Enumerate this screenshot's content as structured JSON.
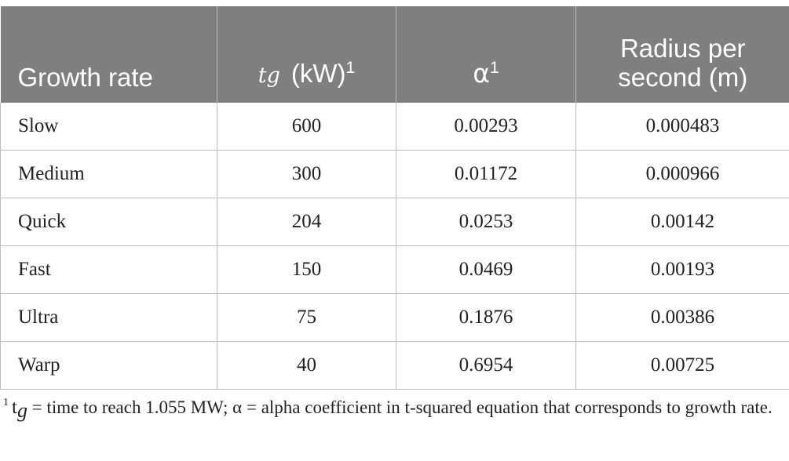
{
  "table": {
    "headers": {
      "growth_rate": "Growth rate",
      "tg_symbol": "tg",
      "tg_unit": "(kW)",
      "tg_note": "1",
      "alpha_symbol": "α",
      "alpha_note": "1",
      "radius_line1": "Radius per",
      "radius_line2": "second (m)"
    },
    "rows": [
      {
        "growth_rate": "Slow",
        "tg_kw": "600",
        "alpha": "0.00293",
        "radius": "0.000483"
      },
      {
        "growth_rate": "Medium",
        "tg_kw": "300",
        "alpha": "0.01172",
        "radius": "0.000966"
      },
      {
        "growth_rate": "Quick",
        "tg_kw": "204",
        "alpha": "0.0253",
        "radius": "0.00142"
      },
      {
        "growth_rate": "Fast",
        "tg_kw": "150",
        "alpha": "0.0469",
        "radius": "0.00193"
      },
      {
        "growth_rate": "Ultra",
        "tg_kw": "75",
        "alpha": "0.1876",
        "radius": "0.00386"
      },
      {
        "growth_rate": "Warp",
        "tg_kw": "40",
        "alpha": "0.6954",
        "radius": "0.00725"
      }
    ]
  },
  "footnote": {
    "marker": "1",
    "tg_t": "t",
    "tg_g": "g",
    "text": " = time to reach 1.055 MW; α = alpha coefficient in t-squared equation that corresponds to growth rate."
  },
  "colors": {
    "header_bg": "#7f7f7f",
    "header_text": "#ffffff",
    "grid": "#bdbdbd",
    "body_text": "#222222"
  }
}
